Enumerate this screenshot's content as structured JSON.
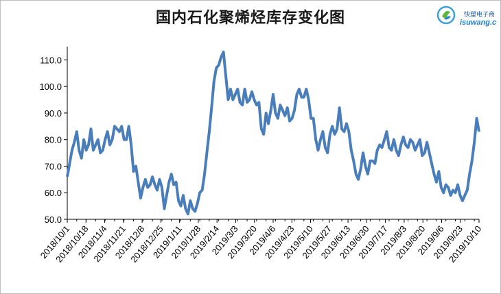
{
  "chart_data": {
    "type": "line",
    "title": "国内石化聚烯烃库存变化图",
    "xlabel": "",
    "ylabel": "",
    "ylim": [
      50.0,
      115.0
    ],
    "yticks": [
      "50.0",
      "60.0",
      "70.0",
      "80.0",
      "90.0",
      "100.0",
      "110.0"
    ],
    "xtick_labels": [
      "2018/10/1",
      "2018/10/18",
      "2018/11/4",
      "2018/11/21",
      "2018/12/8",
      "2018/12/25",
      "2019/1/11",
      "2019/1/28",
      "2019/2/14",
      "2019/3/3",
      "2019/3/20",
      "2019/4/6",
      "2019/4/23",
      "2019/5/10",
      "2019/5/27",
      "2019/6/13",
      "2019/6/30",
      "2019/7/17",
      "2019/8/3",
      "2019/8/20",
      "2019/9/6",
      "2019/9/23",
      "2019/10/10"
    ],
    "line_color": "#4a7ebb",
    "grid": false,
    "series": [
      {
        "values": [
          66,
          71,
          76,
          79,
          83,
          76,
          73,
          80,
          76,
          78,
          84,
          76,
          78,
          80,
          75,
          76,
          80,
          83,
          78,
          80,
          85,
          84,
          83,
          85,
          80,
          80,
          85,
          78,
          68,
          70,
          64,
          58,
          62,
          65,
          62,
          63,
          66,
          63,
          61,
          65,
          62,
          54,
          59,
          64,
          67,
          63,
          64,
          57,
          55,
          59,
          54,
          52,
          57,
          54,
          53,
          56,
          60,
          61,
          67,
          75,
          83,
          92,
          102,
          107,
          108,
          111,
          113,
          104,
          95,
          99,
          95,
          97,
          99,
          94,
          93,
          99,
          94,
          95,
          98,
          95,
          93,
          94,
          84,
          82,
          90,
          86,
          91,
          97,
          90,
          88,
          93,
          91,
          89,
          92,
          87,
          88,
          91,
          97,
          99,
          96,
          96,
          99,
          95,
          88,
          88,
          80,
          76,
          80,
          83,
          77,
          75,
          82,
          85,
          82,
          84,
          92,
          84,
          83,
          86,
          83,
          76,
          72,
          67,
          65,
          69,
          75,
          70,
          67,
          72,
          72,
          71,
          76,
          78,
          77,
          80,
          83,
          77,
          76,
          80,
          76,
          74,
          78,
          81,
          78,
          77,
          80,
          79,
          76,
          78,
          80,
          74,
          75,
          79,
          75,
          71,
          67,
          64,
          68,
          62,
          60,
          63,
          62,
          59,
          61,
          60,
          63,
          59,
          57,
          59,
          61,
          67,
          72,
          79,
          88,
          83
        ]
      }
    ]
  },
  "logo": {
    "cn_text": "快塑电子商",
    "en_text": "isuwang.c",
    "color": "#1f7fc8"
  }
}
